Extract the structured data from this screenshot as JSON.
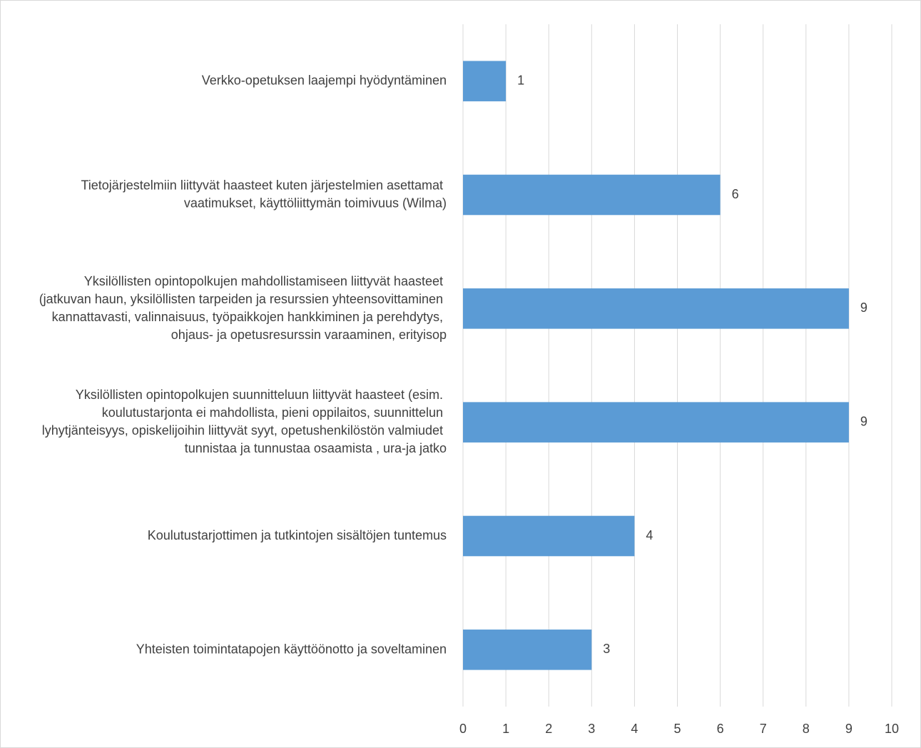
{
  "chart_data": {
    "type": "bar",
    "orientation": "horizontal",
    "categories": [
      "Verkko-opetuksen laajempi hyödyntäminen",
      "Tietojärjestelmiin liittyvät haasteet kuten järjestelmien asettamat vaatimukset, käyttöliittymän toimivuus (Wilma)",
      "Yksilöllisten opintopolkujen mahdollistamiseen liittyvät haasteet (jatkuvan haun, yksilöllisten tarpeiden ja resurssien yhteensovittaminen kannattavasti, valinnaisuus, työpaikkojen hankkiminen ja perehdytys, ohjaus- ja opetusresurssin varaaminen, erityisop",
      "Yksilöllisten opintopolkujen suunnitteluun liittyvät haasteet (esim. koulutustarjonta ei mahdollista, pieni oppilaitos, suunnittelun lyhytjänteisyys, opiskelijoihin liittyvät syyt, opetushenkilöstön valmiudet tunnistaa ja tunnustaa osaamista , ura-ja jatko",
      "Koulutustarjottimen ja tutkintojen sisältöjen tuntemus",
      "Yhteisten toimintatapojen käyttöönotto ja soveltaminen"
    ],
    "values": [
      1,
      6,
      9,
      9,
      4,
      3
    ],
    "color": "#5b9bd5",
    "xlim": [
      0,
      10
    ],
    "xticks": [
      0,
      1,
      2,
      3,
      4,
      5,
      6,
      7,
      8,
      9,
      10
    ],
    "grid": true
  }
}
